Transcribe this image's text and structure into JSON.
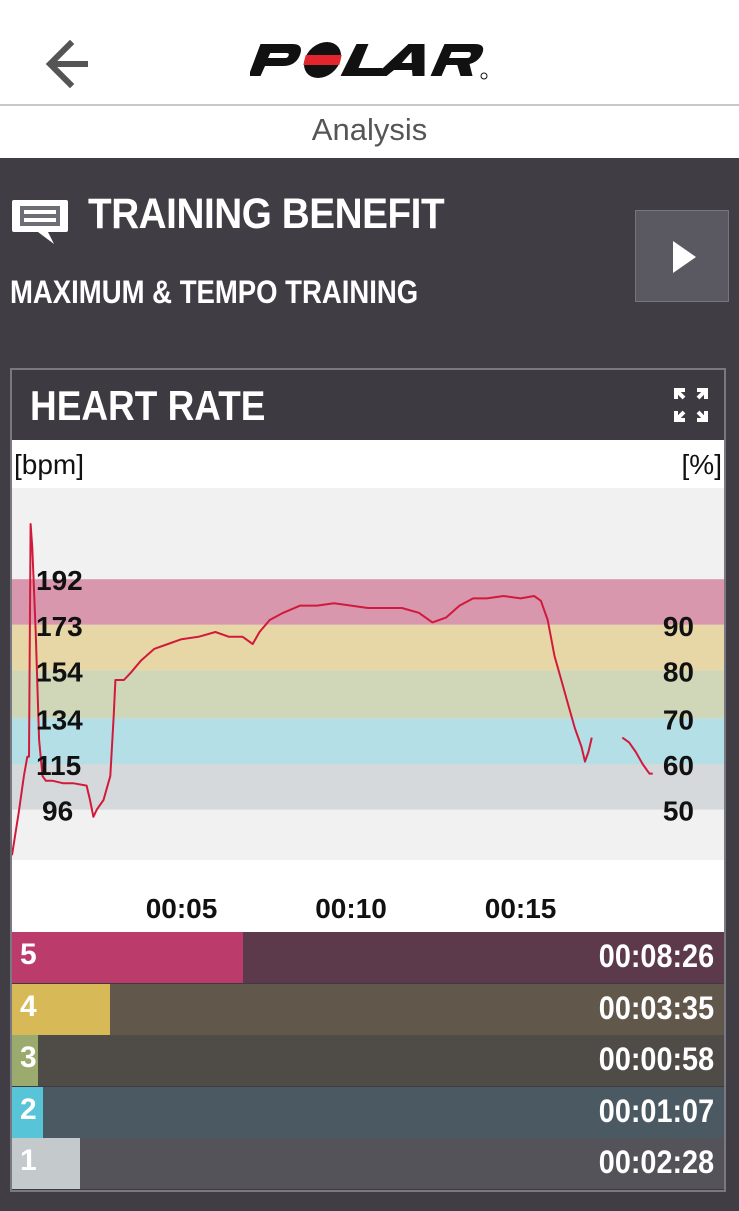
{
  "header": {
    "back_icon": "arrow-left-icon",
    "brand": "POLAR",
    "logo_accent": "#e3262e"
  },
  "page": {
    "title": "Analysis"
  },
  "training_benefit": {
    "icon": "message-icon",
    "title": "TRAINING BENEFIT",
    "subtitle": "MAXIMUM & TEMPO TRAINING",
    "play_icon": "play-icon"
  },
  "heart_rate": {
    "title": "HEART RATE",
    "expand_icon": "expand-icon"
  },
  "chart_data": {
    "type": "line",
    "ylabel_left": "[bpm]",
    "ylabel_right": "[%]",
    "y_left_ticks": [
      "192",
      "173",
      "154",
      "134",
      "115",
      "96"
    ],
    "y_right_ticks": [
      "90",
      "80",
      "70",
      "60",
      "50"
    ],
    "x_ticks": [
      "00:05",
      "00:10",
      "00:15"
    ],
    "ylim": [
      75,
      230
    ],
    "xlim": [
      0,
      21
    ],
    "zone_bands": [
      {
        "zone": 5,
        "from": 173,
        "to": 192,
        "color": "#d897ad"
      },
      {
        "zone": 4,
        "from": 154,
        "to": 173,
        "color": "#e8d7a6"
      },
      {
        "zone": 3,
        "from": 134,
        "to": 154,
        "color": "#d0d7b9"
      },
      {
        "zone": 2,
        "from": 115,
        "to": 134,
        "color": "#b5dfe6"
      },
      {
        "zone": 1,
        "from": 96,
        "to": 115,
        "color": "#d6d9dc"
      }
    ],
    "series": [
      {
        "color": "#d11a3b",
        "segments": [
          [
            [
              0.0,
              77
            ],
            [
              0.2,
              95
            ],
            [
              0.35,
              110
            ],
            [
              0.45,
              118
            ],
            [
              0.5,
              118
            ],
            [
              0.55,
              215
            ],
            [
              0.6,
              205
            ],
            [
              0.7,
              170
            ],
            [
              0.8,
              125
            ],
            [
              0.9,
              110
            ],
            [
              1.0,
              108
            ],
            [
              1.2,
              108
            ],
            [
              1.5,
              107
            ],
            [
              1.8,
              107
            ],
            [
              2.2,
              106
            ],
            [
              2.3,
              100
            ],
            [
              2.4,
              93
            ],
            [
              2.5,
              96
            ],
            [
              2.7,
              100
            ],
            [
              2.9,
              110
            ],
            [
              3.0,
              135
            ],
            [
              3.05,
              150
            ],
            [
              3.1,
              150
            ],
            [
              3.3,
              150
            ],
            [
              3.5,
              153
            ],
            [
              3.8,
              158
            ],
            [
              4.2,
              163
            ],
            [
              4.6,
              165
            ],
            [
              5.0,
              167
            ],
            [
              5.5,
              168
            ],
            [
              6.0,
              170
            ],
            [
              6.4,
              168
            ],
            [
              6.8,
              168
            ],
            [
              7.1,
              165
            ],
            [
              7.3,
              170
            ],
            [
              7.6,
              175
            ],
            [
              8.0,
              178
            ],
            [
              8.5,
              181
            ],
            [
              9.0,
              181
            ],
            [
              9.5,
              182
            ],
            [
              10.0,
              181
            ],
            [
              10.5,
              180
            ],
            [
              11.0,
              180
            ],
            [
              11.5,
              180
            ],
            [
              12.0,
              178
            ],
            [
              12.4,
              174
            ],
            [
              12.8,
              176
            ],
            [
              13.2,
              181
            ],
            [
              13.6,
              184
            ],
            [
              14.0,
              184
            ],
            [
              14.5,
              185
            ],
            [
              15.0,
              184
            ],
            [
              15.4,
              185
            ],
            [
              15.6,
              183
            ],
            [
              15.8,
              175
            ],
            [
              16.0,
              160
            ],
            [
              16.2,
              150
            ],
            [
              16.4,
              140
            ],
            [
              16.6,
              130
            ],
            [
              16.8,
              122
            ],
            [
              16.9,
              116
            ],
            [
              17.0,
              120
            ],
            [
              17.1,
              126
            ]
          ],
          [
            [
              18.0,
              126
            ],
            [
              18.2,
              124
            ],
            [
              18.4,
              120
            ],
            [
              18.6,
              115
            ],
            [
              18.8,
              111
            ],
            [
              18.9,
              111
            ]
          ]
        ]
      }
    ]
  },
  "zones": [
    {
      "num": "5",
      "time": "00:08:26",
      "share": 0.325,
      "color": "#bb3c6a",
      "track": "#5c3a4c"
    },
    {
      "num": "4",
      "time": "00:03:35",
      "share": 0.137,
      "color": "#d8b957",
      "track": "#61574a"
    },
    {
      "num": "3",
      "time": "00:00:58",
      "share": 0.037,
      "color": "#9bab6e",
      "track": "#4f4c48"
    },
    {
      "num": "2",
      "time": "00:01:07",
      "share": 0.043,
      "color": "#58c4d8",
      "track": "#4a5962"
    },
    {
      "num": "1",
      "time": "00:02:28",
      "share": 0.095,
      "color": "#c4c9cb",
      "track": "#55535a"
    }
  ]
}
